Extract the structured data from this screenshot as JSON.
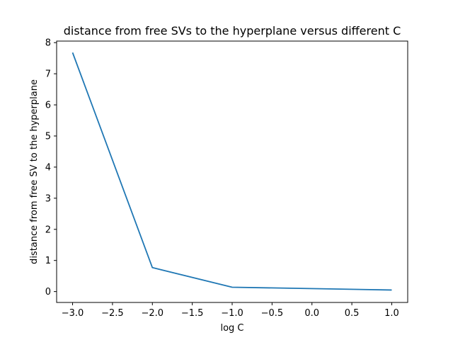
{
  "chart_data": {
    "type": "line",
    "title": "distance from free SVs to the hyperplane versus different C",
    "xlabel": "log C",
    "ylabel": "distance from free SV to the hyperplane",
    "xlim": [
      -3.2,
      1.2
    ],
    "ylim": [
      -0.35,
      8.05
    ],
    "x_ticks": [
      -3.0,
      -2.5,
      -2.0,
      -1.5,
      -1.0,
      -0.5,
      0.0,
      0.5,
      1.0
    ],
    "x_tick_labels": [
      "−3.0",
      "−2.5",
      "−2.0",
      "−1.5",
      "−1.0",
      "−0.5",
      "0.0",
      "0.5",
      "1.0"
    ],
    "y_ticks": [
      0,
      1,
      2,
      3,
      4,
      5,
      6,
      7,
      8
    ],
    "y_tick_labels": [
      "0",
      "1",
      "2",
      "3",
      "4",
      "5",
      "6",
      "7",
      "8"
    ],
    "grid": false,
    "series": [
      {
        "color": "#1f77b4",
        "x": [
          -3.0,
          -2.0,
          -1.0,
          1.0
        ],
        "y": [
          7.68,
          0.77,
          0.14,
          0.05
        ]
      }
    ]
  }
}
